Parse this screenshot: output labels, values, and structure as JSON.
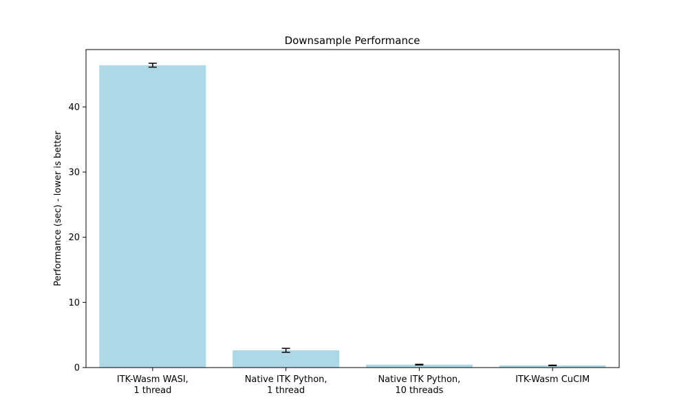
{
  "chart_data": {
    "type": "bar",
    "title": "Downsample Performance",
    "xlabel": "",
    "ylabel": "Performance (sec) - lower is better",
    "categories": [
      [
        "ITK-Wasm WASI,",
        "1 thread"
      ],
      [
        "Native ITK Python,",
        "1 thread"
      ],
      [
        "Native ITK Python,",
        "10 threads"
      ],
      [
        "ITK-Wasm CuCIM"
      ]
    ],
    "values": [
      46.4,
      2.65,
      0.45,
      0.33
    ],
    "errors": [
      0.3,
      0.3,
      0.05,
      0.04
    ],
    "ylim": [
      0,
      48.8
    ],
    "yticks": [
      0,
      10,
      20,
      30,
      40
    ],
    "bar_color": "#add8e6",
    "error_color": "#000000",
    "grid": false,
    "legend": "none"
  }
}
